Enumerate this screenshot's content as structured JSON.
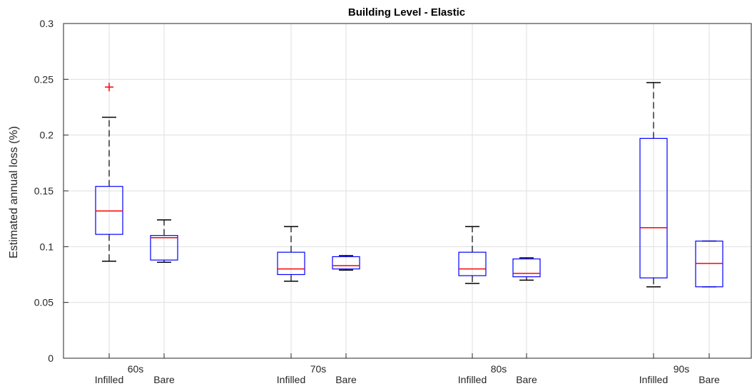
{
  "chart_data": {
    "type": "box",
    "title": "Building Level - Elastic",
    "ylabel": "Estimated annual loss (%)",
    "xlabel": "",
    "ylim": [
      0,
      0.3
    ],
    "yticks": [
      "0",
      "0.05",
      "0.1",
      "0.15",
      "0.2",
      "0.25",
      "0.3"
    ],
    "grid": true,
    "groups": [
      "60s",
      "70s",
      "80s",
      "90s"
    ],
    "boxes": [
      {
        "group": "60s",
        "label": "Infilled",
        "whisker_low": 0.087,
        "q1": 0.111,
        "median": 0.132,
        "q3": 0.154,
        "whisker_high": 0.216,
        "outliers": [
          0.243
        ]
      },
      {
        "group": "60s",
        "label": "Bare",
        "whisker_low": 0.086,
        "q1": 0.088,
        "median": 0.108,
        "q3": 0.11,
        "whisker_high": 0.124,
        "outliers": []
      },
      {
        "group": "70s",
        "label": "Infilled",
        "whisker_low": 0.069,
        "q1": 0.075,
        "median": 0.08,
        "q3": 0.095,
        "whisker_high": 0.118,
        "outliers": []
      },
      {
        "group": "70s",
        "label": "Bare",
        "whisker_low": 0.079,
        "q1": 0.08,
        "median": 0.083,
        "q3": 0.091,
        "whisker_high": 0.092,
        "outliers": []
      },
      {
        "group": "80s",
        "label": "Infilled",
        "whisker_low": 0.067,
        "q1": 0.074,
        "median": 0.08,
        "q3": 0.095,
        "whisker_high": 0.118,
        "outliers": []
      },
      {
        "group": "80s",
        "label": "Bare",
        "whisker_low": 0.07,
        "q1": 0.073,
        "median": 0.076,
        "q3": 0.089,
        "whisker_high": 0.09,
        "outliers": []
      },
      {
        "group": "90s",
        "label": "Infilled",
        "whisker_low": 0.064,
        "q1": 0.072,
        "median": 0.117,
        "q3": 0.197,
        "whisker_high": 0.247,
        "outliers": []
      },
      {
        "group": "90s",
        "label": "Bare",
        "whisker_low": 0.064,
        "q1": 0.064,
        "median": 0.085,
        "q3": 0.105,
        "whisker_high": 0.105,
        "outliers": []
      }
    ],
    "colors": {
      "box": "#0000ff",
      "median": "#ff0000",
      "whisker": "#000000",
      "outlier": "#ff0000",
      "grid": "#dfdfdf",
      "axis": "#262626"
    }
  }
}
